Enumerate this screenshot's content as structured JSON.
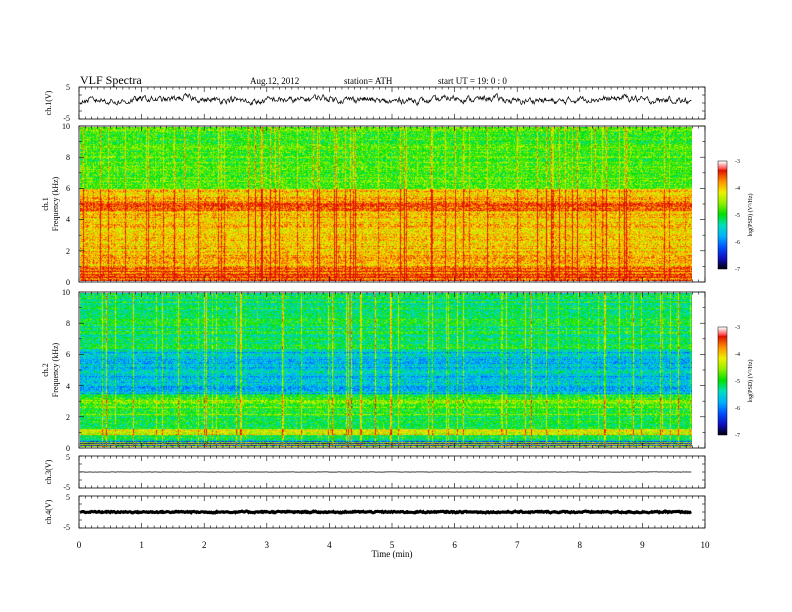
{
  "header": {
    "title": "VLF  Spectra",
    "date": "Aug.12, 2012",
    "station": "station= ATH",
    "start_ut": "start  UT  =    19: 0  : 0"
  },
  "colors": {
    "palette": [
      "#000000",
      "#1010c0",
      "#0050ff",
      "#00b0ff",
      "#00e0c0",
      "#00e000",
      "#90f000",
      "#f0f000",
      "#ff9000",
      "#e01000",
      "#ffffff"
    ]
  },
  "chart_data": [
    {
      "type": "line",
      "panel": "ch1",
      "ylabel": "ch.1(V)",
      "ylim": [
        -5,
        5
      ],
      "yticks": [
        "5",
        "-5"
      ],
      "series_level": 1,
      "series_noise": 1.3,
      "xlim": [
        0,
        10
      ],
      "grid": false
    },
    {
      "type": "heatmap",
      "panel": "ch1-spec",
      "ylabel": [
        "ch.1",
        "Frequency  (kHz)"
      ],
      "ylim": [
        0,
        10
      ],
      "yticks": [
        "0",
        "2",
        "4",
        "6",
        "8",
        "10"
      ],
      "xlim": [
        0,
        9.8
      ],
      "colorbar": {
        "label": "log(PSD) (V²/Hz)",
        "range": [
          -7,
          -3
        ],
        "ticks": [
          "-3",
          "-4",
          "-5",
          "-6",
          "-7"
        ]
      },
      "description": "power spectral density, mostly -4 to -5 (green-yellow) at 6-10 kHz, -3 to -4 (orange-red) bands below 6 kHz"
    },
    {
      "type": "heatmap",
      "panel": "ch2-spec",
      "ylabel": [
        "ch.2",
        "Frequency  (kHz)"
      ],
      "ylim": [
        0,
        10
      ],
      "yticks": [
        "0",
        "2",
        "4",
        "6",
        "8",
        "10"
      ],
      "xlim": [
        0,
        9.8
      ],
      "colorbar": {
        "label": "log(PSD) (V²/Hz)",
        "range": [
          -7,
          -3
        ],
        "ticks": [
          "-3",
          "-4",
          "-5",
          "-6",
          "-7"
        ]
      },
      "description": "mostly -5 to -5.5 (green) with cyan-blue -6 bands near 4-6 kHz and yellow vertical sferics"
    },
    {
      "type": "line",
      "panel": "ch3",
      "ylabel": "ch.3(V)",
      "ylim": [
        -5,
        5
      ],
      "yticks": [
        "5",
        "-5"
      ],
      "series_level": 0,
      "series_noise": 0.05,
      "xlim": [
        0,
        10
      ]
    },
    {
      "type": "line",
      "panel": "ch4",
      "ylabel": "ch.4(V)",
      "ylim": [
        -5,
        5
      ],
      "yticks": [
        "5",
        "-5"
      ],
      "series_level": 0,
      "series_noise": 0.3,
      "xlim": [
        0,
        10
      ]
    }
  ],
  "xaxis": {
    "label": "Time  (min)",
    "range": [
      0,
      10
    ],
    "ticks": [
      "0",
      "1",
      "2",
      "3",
      "4",
      "5",
      "6",
      "7",
      "8",
      "9",
      "10"
    ]
  }
}
